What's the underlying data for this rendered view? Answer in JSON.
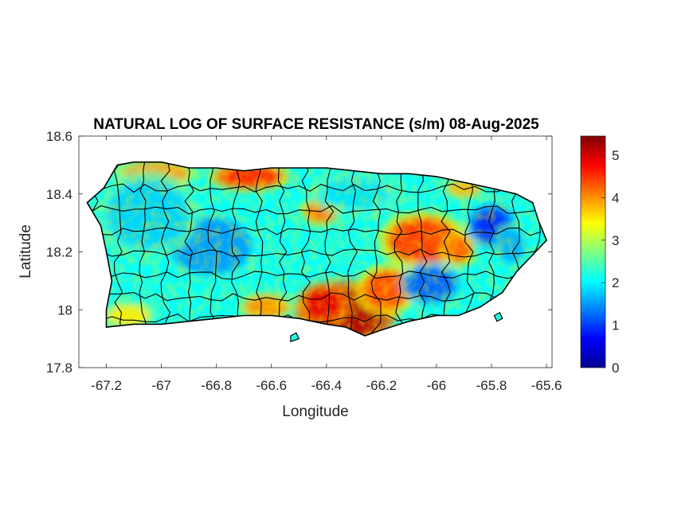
{
  "chart_data": {
    "type": "heatmap",
    "title": "NATURAL LOG OF SURFACE RESISTANCE (s/m) 08-Aug-2025",
    "xlabel": "Longitude",
    "ylabel": "Latitude",
    "xlim": [
      -67.3,
      -65.58
    ],
    "ylim": [
      17.8,
      18.6
    ],
    "xticks": [
      -67.2,
      -67,
      -66.8,
      -66.6,
      -66.4,
      -66.2,
      -66,
      -65.8,
      -65.6
    ],
    "xtick_labels": [
      "-67.2",
      "-67",
      "-66.8",
      "-66.6",
      "-66.4",
      "-66.2",
      "-66",
      "-65.8",
      "-65.6"
    ],
    "yticks": [
      17.8,
      18,
      18.2,
      18.4,
      18.6
    ],
    "ytick_labels": [
      "17.8",
      "18",
      "18.2",
      "18.4",
      "18.6"
    ],
    "colorbar": {
      "colormap": "jet",
      "range": [
        0,
        5.45
      ],
      "ticks": [
        0,
        1,
        2,
        3,
        4,
        5
      ],
      "tick_labels": [
        "0",
        "1",
        "2",
        "3",
        "4",
        "5"
      ]
    },
    "grid": false,
    "outline_lonlat": [
      [
        -67.27,
        18.37
      ],
      [
        -67.21,
        18.42
      ],
      [
        -67.16,
        18.5
      ],
      [
        -67.1,
        18.51
      ],
      [
        -67.0,
        18.51
      ],
      [
        -66.9,
        18.49
      ],
      [
        -66.8,
        18.49
      ],
      [
        -66.7,
        18.48
      ],
      [
        -66.6,
        18.49
      ],
      [
        -66.5,
        18.49
      ],
      [
        -66.4,
        18.49
      ],
      [
        -66.3,
        18.48
      ],
      [
        -66.2,
        18.47
      ],
      [
        -66.1,
        18.47
      ],
      [
        -66.0,
        18.46
      ],
      [
        -65.9,
        18.44
      ],
      [
        -65.8,
        18.42
      ],
      [
        -65.71,
        18.4
      ],
      [
        -65.65,
        18.37
      ],
      [
        -65.63,
        18.31
      ],
      [
        -65.6,
        18.24
      ],
      [
        -65.64,
        18.2
      ],
      [
        -65.71,
        18.13
      ],
      [
        -65.76,
        18.06
      ],
      [
        -65.84,
        18.01
      ],
      [
        -65.92,
        17.98
      ],
      [
        -66.0,
        17.98
      ],
      [
        -66.1,
        17.96
      ],
      [
        -66.2,
        17.93
      ],
      [
        -66.26,
        17.91
      ],
      [
        -66.33,
        17.94
      ],
      [
        -66.4,
        17.95
      ],
      [
        -66.5,
        17.97
      ],
      [
        -66.6,
        17.98
      ],
      [
        -66.7,
        17.98
      ],
      [
        -66.8,
        17.97
      ],
      [
        -66.9,
        17.96
      ],
      [
        -67.0,
        17.95
      ],
      [
        -67.1,
        17.95
      ],
      [
        -67.2,
        17.94
      ],
      [
        -67.2,
        18.0
      ],
      [
        -67.18,
        18.1
      ],
      [
        -67.2,
        18.2
      ],
      [
        -67.22,
        18.29
      ],
      [
        -67.27,
        18.37
      ]
    ],
    "islets_lonlat": [
      [
        [
          -66.53,
          17.91
        ],
        [
          -66.51,
          17.92
        ],
        [
          -66.5,
          17.9
        ],
        [
          -66.53,
          17.89
        ]
      ],
      [
        [
          -65.79,
          17.98
        ],
        [
          -65.77,
          17.99
        ],
        [
          -65.76,
          17.97
        ],
        [
          -65.78,
          17.96
        ]
      ]
    ],
    "field_features": [
      {
        "kind": "high",
        "lon": -66.33,
        "lat": 17.99,
        "rx": 0.15,
        "ry": 0.09,
        "value": 5.2
      },
      {
        "kind": "high",
        "lon": -66.41,
        "lat": 18.02,
        "rx": 0.08,
        "ry": 0.06,
        "value": 4.9
      },
      {
        "kind": "high",
        "lon": -66.18,
        "lat": 18.07,
        "rx": 0.09,
        "ry": 0.07,
        "value": 4.4
      },
      {
        "kind": "high",
        "lon": -66.05,
        "lat": 18.24,
        "rx": 0.13,
        "ry": 0.08,
        "value": 4.5
      },
      {
        "kind": "high",
        "lon": -65.92,
        "lat": 18.21,
        "rx": 0.05,
        "ry": 0.05,
        "value": 4.3
      },
      {
        "kind": "high",
        "lon": -66.68,
        "lat": 18.46,
        "rx": 0.12,
        "ry": 0.04,
        "value": 4.6
      },
      {
        "kind": "high",
        "lon": -67.02,
        "lat": 18.47,
        "rx": 0.12,
        "ry": 0.04,
        "value": 4.0
      },
      {
        "kind": "high",
        "lon": -66.42,
        "lat": 18.34,
        "rx": 0.06,
        "ry": 0.04,
        "value": 4.2
      },
      {
        "kind": "high",
        "lon": -67.12,
        "lat": 17.98,
        "rx": 0.08,
        "ry": 0.04,
        "value": 3.5
      },
      {
        "kind": "high",
        "lon": -66.62,
        "lat": 18.01,
        "rx": 0.08,
        "ry": 0.04,
        "value": 4.0
      },
      {
        "kind": "high",
        "lon": -65.9,
        "lat": 18.42,
        "rx": 0.06,
        "ry": 0.03,
        "value": 3.8
      },
      {
        "kind": "low",
        "lon": -65.8,
        "lat": 18.29,
        "rx": 0.07,
        "ry": 0.06,
        "value": 0.9
      },
      {
        "kind": "low",
        "lon": -66.02,
        "lat": 18.09,
        "rx": 0.09,
        "ry": 0.06,
        "value": 1.2
      },
      {
        "kind": "low",
        "lon": -66.82,
        "lat": 18.22,
        "rx": 0.15,
        "ry": 0.1,
        "value": 1.5
      },
      {
        "kind": "low",
        "lon": -67.05,
        "lat": 18.33,
        "rx": 0.15,
        "ry": 0.12,
        "value": 1.8
      },
      {
        "kind": "low",
        "lon": -66.3,
        "lat": 18.4,
        "rx": 0.13,
        "ry": 0.06,
        "value": 1.9
      },
      {
        "kind": "low",
        "lon": -65.73,
        "lat": 18.22,
        "rx": 0.05,
        "ry": 0.06,
        "value": 1.6
      }
    ]
  }
}
